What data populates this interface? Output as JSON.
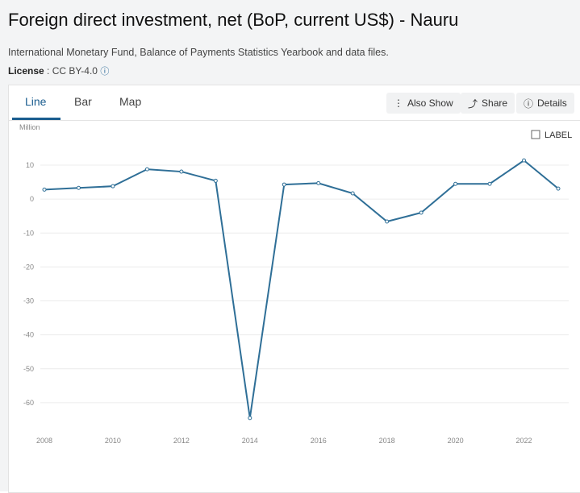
{
  "header": {
    "title": "Foreign direct investment, net (BoP, current US$) - Nauru",
    "source": "International Monetary Fund, Balance of Payments Statistics Yearbook and data files.",
    "license_label": "License",
    "license_value": ": CC BY-4.0"
  },
  "tabs": [
    "Line",
    "Bar",
    "Map"
  ],
  "buttons": [
    "Also Show",
    "Share",
    "Details"
  ],
  "label_toggle": "LABEL",
  "chart_data": {
    "type": "line",
    "y_unit": "Million",
    "x": [
      2008,
      2009,
      2010,
      2011,
      2012,
      2013,
      2014,
      2015,
      2016,
      2017,
      2018,
      2019,
      2020,
      2021,
      2022,
      2023
    ],
    "series": [
      {
        "name": "Nauru",
        "color": "#2f6f97",
        "values": [
          2.8,
          3.3,
          3.8,
          8.8,
          8.1,
          5.4,
          -64.5,
          4.3,
          4.7,
          1.7,
          -6.6,
          -4.0,
          4.5,
          4.5,
          11.4,
          3.1
        ]
      }
    ],
    "xlim": [
      2008,
      2023
    ],
    "xticks": [
      2008,
      2010,
      2012,
      2014,
      2016,
      2018,
      2020,
      2022
    ],
    "ylim": [
      -70,
      15
    ],
    "yticks": [
      10,
      0,
      -10,
      -20,
      -30,
      -40,
      -50,
      -60
    ],
    "grid": true
  }
}
